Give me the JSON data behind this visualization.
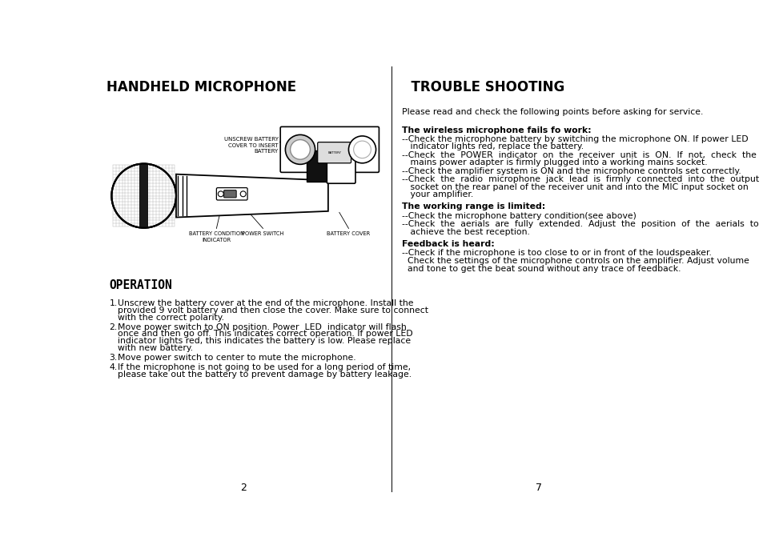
{
  "bg_color": "#ffffff",
  "left_title": "HANDHELD MICROPHONE",
  "right_title": "  TROUBLE SHOOTING",
  "operation_title": "OPERATION",
  "intro_text": "Please read and check the following points before asking for service.",
  "section1_heading": "The wireless microphone fails fo work:",
  "section1_bullets": [
    "--Check the microphone battery by switching the microphone ON. If power LED indicator lights red, replace the battery.",
    "--Check  the  POWER  indicator  on  the  receiver  unit  is  ON.  If  not,  check  the mains power adapter is firmly plugged into a working mains socket.",
    "--Check the amplifier system is ON and the microphone controls set correctly.",
    "--Check  the  radio  microphone  jack  lead  is  firmly  connected  into  the  output socket on the rear panel of the receiver unit and into the MIC input socket on your amplifier."
  ],
  "section2_heading": "The working range is limited:",
  "section2_bullets": [
    "--Check the microphone battery condition(see above)",
    "--Check  the  aerials  are  fully  extended.  Adjust  the  position  of  the  aerials  to achieve the best reception."
  ],
  "section3_heading": "Feedback is heard:",
  "section3_bullets": [
    "--Check if the microphone is too close to or in front of the loudspeaker.",
    "  Check the settings of the microphone controls on the amplifier. Adjust volume and tone to get the beat sound without any trace of feedback."
  ],
  "op_item1_num": "1.",
  "op_item1": "Unscrew the battery cover at the end of the microphone. Install the\n   provided 9 volt battery and then close the cover. Make sure to connect\n   with the correct polarity.",
  "op_item2_num": "2.",
  "op_item2": "Move power switch to ON position. Power  LED  indicator will flash\n   once and then go off. This indicates correct operation. If power LED\n   indicator lights red, this indicates the battery is low. Please replace\n   with new battery.",
  "op_item3_num": "3.",
  "op_item3": "Move power switch to center to mute the microphone.",
  "op_item4_num": "4.",
  "op_item4": "If the microphone is not going to be used for a long period of time,\n   please take out the battery to prevent damage by battery leakage.",
  "page_left": "2",
  "page_right": "7",
  "label_unscrew": "UNSCREW BATTERY\nCOVER TO INSERT\nBATTERY",
  "label_battery_cond": "BATTERY CONDITION\nINDICATOR",
  "label_power_switch": "POWER SWITCH",
  "label_battery_cover": "BATTERY COVER"
}
